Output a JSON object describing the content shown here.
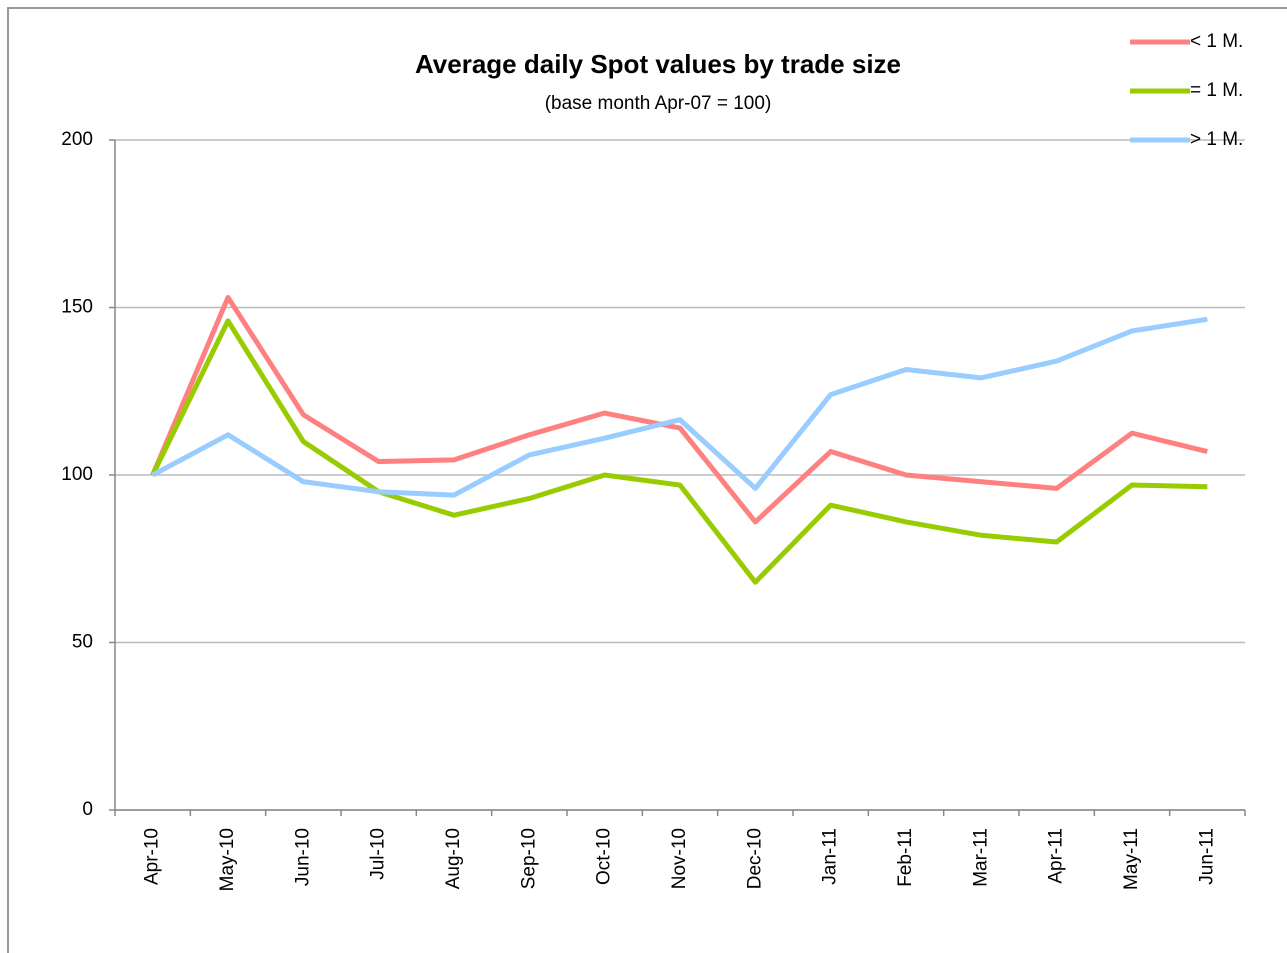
{
  "chart_data": {
    "type": "line",
    "title": "Average daily Spot values by trade size",
    "subtitle": "(base month Apr-07 = 100)",
    "categories": [
      "Apr-10",
      "May-10",
      "Jun-10",
      "Jul-10",
      "Aug-10",
      "Sep-10",
      "Oct-10",
      "Nov-10",
      "Dec-10",
      "Jan-11",
      "Feb-11",
      "Mar-11",
      "Apr-11",
      "May-11",
      "Jun-11"
    ],
    "series": [
      {
        "name": "< 1 M.",
        "color": "#ff8080",
        "values": [
          100,
          153,
          118,
          104,
          104.5,
          112,
          118.5,
          114,
          86,
          107,
          100,
          98,
          96,
          112.5,
          107
        ]
      },
      {
        "name": "= 1 M.",
        "color": "#99cc00",
        "values": [
          100,
          146,
          110,
          95,
          88,
          93,
          100,
          97,
          68,
          91,
          86,
          82,
          80,
          97,
          96.5
        ]
      },
      {
        "name": "> 1 M.",
        "color": "#99ccff",
        "values": [
          100,
          112,
          98,
          95,
          94,
          106,
          111,
          116.5,
          96,
          124,
          131.5,
          129,
          134,
          143,
          146.5
        ]
      }
    ],
    "ylim": [
      0,
      200
    ],
    "yticks": [
      0,
      50,
      100,
      150,
      200
    ],
    "grid": true,
    "legend": "top-right"
  }
}
